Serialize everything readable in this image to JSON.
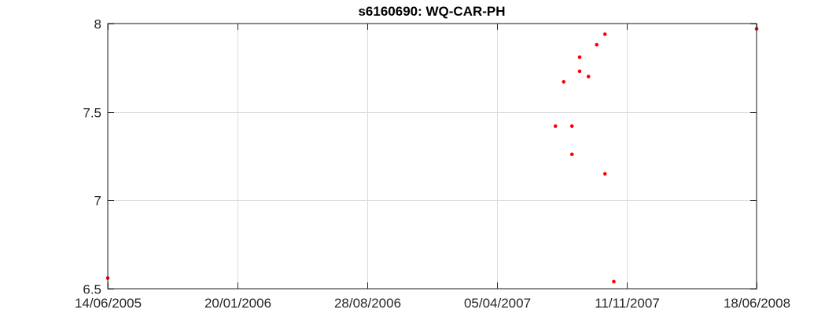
{
  "chart_data": {
    "type": "scatter",
    "title": "s6160690: WQ-CAR-PH",
    "xlabel": "",
    "ylabel": "",
    "x_ticks": [
      "14/06/2005",
      "20/01/2006",
      "28/08/2006",
      "05/04/2007",
      "11/11/2007",
      "18/06/2008"
    ],
    "y_ticks": [
      "6.5",
      "7",
      "7.5",
      "8"
    ],
    "xlim": [
      "2005-06-14",
      "2008-06-18"
    ],
    "ylim": [
      6.5,
      8
    ],
    "grid": true,
    "colors": {
      "marker": "#ff0000",
      "grid": "#dcdcdc",
      "axis": "#262626"
    },
    "series": [
      {
        "points": [
          {
            "x": "2005-06-14",
            "y": 6.56
          },
          {
            "x": "2007-07-13",
            "y": 7.42
          },
          {
            "x": "2007-07-27",
            "y": 7.67
          },
          {
            "x": "2007-08-10",
            "y": 7.42
          },
          {
            "x": "2007-08-10",
            "y": 7.26
          },
          {
            "x": "2007-08-23",
            "y": 7.81
          },
          {
            "x": "2007-08-23",
            "y": 7.73
          },
          {
            "x": "2007-09-07",
            "y": 7.7
          },
          {
            "x": "2007-09-21",
            "y": 7.88
          },
          {
            "x": "2007-10-05",
            "y": 7.94
          },
          {
            "x": "2007-10-05",
            "y": 7.15
          },
          {
            "x": "2007-10-20",
            "y": 6.54
          },
          {
            "x": "2008-06-18",
            "y": 7.97
          }
        ]
      }
    ]
  }
}
